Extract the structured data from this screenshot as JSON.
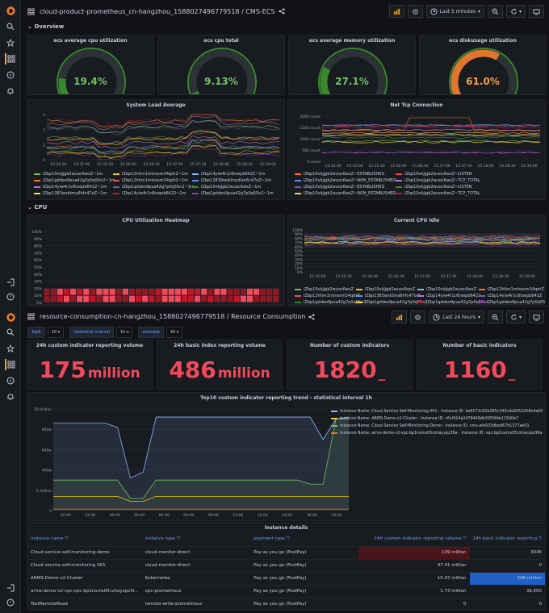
{
  "colors": {
    "green": "#37872d",
    "orange": "#f2a050",
    "red": "#f2495c",
    "blue": "#1f60c4",
    "accent": "#6e9fff"
  },
  "dash1": {
    "title": "cloud-product-prometheus_cn-hangzhou_1588027496779518",
    "sep": "/",
    "sub": "CMS-ECS",
    "time": "Last 5 minutes"
  },
  "dash2": {
    "title": "resource-consumption-cn-hangzhou_1588027496779518",
    "sep": "/",
    "sub": "Resource Consumption",
    "time": "Last 24 hours"
  },
  "sections": {
    "overview": "Overview",
    "cpu": "CPU"
  },
  "gauges": [
    {
      "title": "ecs average cpu utilization",
      "value": "19.4%",
      "pct": 19.4,
      "color": "#37872d"
    },
    {
      "title": "ecs cpu total",
      "value": "9.13%",
      "pct": 9.13,
      "color": "#37872d"
    },
    {
      "title": "ecs average memory utilization",
      "value": "27.1%",
      "pct": 27.1,
      "color": "#37872d"
    },
    {
      "title": "ecs diskusage utilization",
      "value": "61.0%",
      "pct": 61.0,
      "color": "#e0752d"
    }
  ],
  "load": {
    "title": "System Load Average",
    "yticks": [
      "3",
      "2",
      "1",
      "0"
    ],
    "xticks": [
      "15:34:30",
      "15:35:00",
      "15:35:30",
      "15:36:00",
      "15:36:30",
      "15:37:00",
      "15:37:30",
      "15:38:00",
      "15:38:30",
      "15:39:00"
    ],
    "legend": [
      "iZbp10vkjjgb2wuoc6wsZ~1m",
      "iZbp12hfvn1mtvssm34qdrZ~1m",
      "iZbp14yiw4r1c6txepb6422~1m",
      "iZbp1gddeo9pua42g7p0q55n2~1m",
      "iZbp12hfvn1mtvssm34qdrZ~1m",
      "iZbp13839wsktmo6ah6c47oZ~1m",
      "iZbp14yiw4r1c6txepb6422~1m",
      "iZbp1qddeo9pua42g7p0q55n2~1m",
      "iZbp10vkjjgb2wuoc6wsZ~1m",
      "iZbp1383wsktma6hfc47oZ~1m",
      "iZbp14yiw4r1c6txepb6422~1m",
      "iZbp1gddeo9pua42g7p0q55n2~1m"
    ]
  },
  "tcp": {
    "title": "Net Tcp Connection",
    "yticks": [
      "2000 count",
      "1500 count",
      "1000 count",
      "500 count",
      "0 count"
    ],
    "xticks": [
      "15:34:30",
      "15:35:00",
      "15:35:30",
      "15:36:00",
      "15:36:30",
      "15:37:00",
      "15:37:30",
      "15:38:00",
      "15:38:30",
      "15:39:00"
    ],
    "legend": [
      "iZbp10vkjjgb2wuoc6wsZ~ESTABLISHED",
      "iZbp10vkjjgb2wuoc6wsZ~LISTEN",
      "iZbp10vkjjgb2wuoc6wsZ~NON_ESTABLISHED",
      "iZbp10vkjjgb2wuoc6wsZ~TCP_TOTAL",
      "iZbp10vkjjgb2wuoc6wsZ~ESTABLISHED",
      "iZbp10vkjjgb2wuoc6wsZ~LISTEN",
      "iZbp10vkjjgb2wuoc6wsZ~NON_ESTABLISHED",
      "iZbp10vkjjgb2wuoc6wsZ~TCP_TOTAL"
    ]
  },
  "heat": {
    "title": "CPU Utilization Heatmap",
    "yticks": [
      "100%",
      "90%",
      "80%",
      "70%",
      "60%",
      "50%",
      "40%",
      "30%",
      "20%",
      "10%",
      "0%"
    ]
  },
  "idle": {
    "title": "Current CPU Idle",
    "yticks": [
      "100%",
      "90%",
      "80%",
      "70%",
      "60%",
      "50%",
      "40%",
      "30%",
      "20%",
      "10%",
      "0%"
    ],
    "xticks": [
      "15:35:00",
      "15:35:30",
      "15:36:00",
      "15:36:30",
      "15:37:00",
      "15:37:30",
      "15:38:00",
      "15:38:30",
      "15:39:00"
    ],
    "legend": [
      "iZbp10vkjjgb2wuoc6wsZ",
      "iZbp10vkjjgb2wuoc6wsZ",
      "iZbp10vkjjgb2wuoc6wsZ",
      "iZbp12hfvn1mtvssm34qdrZ",
      "iZbp12hfvn1mtvssm34qdrZ",
      "iZbp1383wsktma6hfc47oiZ",
      "iZbp14yiw4r1c6txepb6422",
      "iZbp14yiw4r1c6txepb642Z",
      "iZbp1gddeo9pua42g7p0q55n2",
      "iZbp1gddeo9pua42g7p0q55n2",
      "iZbp1gddeo9pua42g7p0q55n2",
      "iZbp1gddeo9pua42g7p0q55n2"
    ]
  },
  "vars": {
    "topk_label": "TopK",
    "topk": "10",
    "interval_label": "statistical interval",
    "interval": "1h",
    "example_label": "example",
    "example": "All"
  },
  "stats": [
    {
      "title": "24h custom indicator reporting volume",
      "value": "175",
      "unit": "million"
    },
    {
      "title": "24h basic index reporting volume",
      "value": "486",
      "unit": "million"
    },
    {
      "title": "Number of custom indicators",
      "value": "1820",
      "unit": "_"
    },
    {
      "title": "Number of basic indicators",
      "value": "1160",
      "unit": "_"
    }
  ],
  "trend": {
    "title": "Top10 custom indicator reporting trend - statistical interval 1h",
    "yticks": [
      "10 million",
      "800w",
      "600w",
      "400w",
      "2 million",
      "0"
    ],
    "xticks": [
      "20:00",
      "22:00",
      "00:00",
      "02:00",
      "04:00",
      "06:00",
      "08:00",
      "10:00",
      "12:00",
      "14:00",
      "16:00",
      "18:00"
    ],
    "legend": [
      "Instance Name: Cloud Service Self-Monitoring 001 - Instance ID: ba6573c92b385c345cde9352d58e4a00",
      "Instance Name: ARMS-Demo-v2-Cluster - Instance ID: c6cf414a2476449db3950fde11590e7",
      "Instance Name: Cloud Service Self-Monitoring-Demo - Instance ID: cms-afe933dbed67b1377ae01",
      "Instance Name: arms-demo-v2-vpc-bp1nxms05cshayxpz36a - Instance ID: vpc-bp1nxms05cshayxpz36a"
    ]
  },
  "table": {
    "title": "instance details",
    "headers": [
      "instance name",
      "instance type",
      "payment type",
      "24H custom indicator reporting volume",
      "24h basic indicator reporting"
    ],
    "rows": [
      {
        "name": "Cloud service self-monitoring-demo",
        "type": "cloud-monitor-direct",
        "pay": "Pay as you go (PostPay)",
        "custom": "109 million",
        "basic": "3946",
        "c": "#4a1418",
        "b": ""
      },
      {
        "name": "Cloud service self-monitoring 001",
        "type": "cloud-monitor-direct",
        "pay": "Pay as you go (PostPay)",
        "custom": "47.41 million",
        "basic": "0",
        "c": "",
        "b": ""
      },
      {
        "name": "ARMS-Demo-v2-Cluster",
        "type": "Kubernetes",
        "pay": "Pay as you go (PostPay)",
        "custom": "15.97 million",
        "basic": "348 million",
        "c": "",
        "b": "#1f60c4"
      },
      {
        "name": "arms-demo-v2-vpc-vpc-bp1nxms05cshayxpz3l...",
        "type": "vpc-prometheus",
        "pay": "Pay as you go (PostPay)",
        "custom": "1.73 million",
        "basic": "39,500",
        "c": "",
        "b": ""
      },
      {
        "name": "TestRemoteRead",
        "type": "remote-write-prometheus",
        "pay": "Pay as you go (PostPay)",
        "custom": "0",
        "basic": "0",
        "c": "",
        "b": ""
      }
    ]
  }
}
